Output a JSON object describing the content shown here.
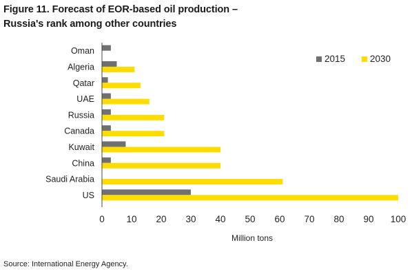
{
  "title_line1": "Figure 11. Forecast of EOR-based oil production –",
  "title_line2": "Russia's rank among other countries",
  "source": "Source: International Energy Agency.",
  "colors": {
    "s2015": "#707070",
    "s2030": "#FFDC00"
  },
  "chart_data": {
    "type": "bar",
    "orientation": "horizontal",
    "categories": [
      "Oman",
      "Algeria",
      "Qatar",
      "UAE",
      "Russia",
      "Canada",
      "Kuwait",
      "China",
      "Saudi Arabia",
      "US"
    ],
    "series": [
      {
        "name": "2015",
        "values": [
          3,
          5,
          2,
          3,
          3,
          3,
          8,
          3,
          0,
          30
        ]
      },
      {
        "name": "2030",
        "values": [
          0,
          11,
          13,
          16,
          21,
          21,
          40,
          40,
          61,
          100
        ]
      }
    ],
    "xlabel": "Million tons",
    "xlim": [
      0,
      100
    ],
    "xticks": [
      0,
      10,
      20,
      30,
      40,
      50,
      60,
      70,
      80,
      90,
      100
    ],
    "legend": "top-right",
    "grid": false
  }
}
